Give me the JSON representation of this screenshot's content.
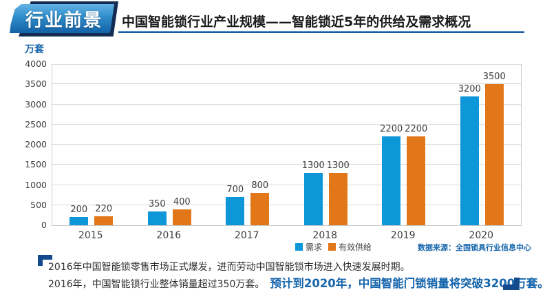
{
  "header": {
    "banner_label": "行业前景",
    "title": "中国智能锁行业产业规模——智能锁近5年的供给及需求概况"
  },
  "chart_data": {
    "type": "bar",
    "title": "",
    "categories": [
      "2015",
      "2016",
      "2017",
      "2018",
      "2019",
      "2020"
    ],
    "series": [
      {
        "name": "需求",
        "color": "#0d97d9",
        "values": [
          200,
          350,
          700,
          1300,
          2200,
          3200
        ]
      },
      {
        "name": "有效供给",
        "color": "#e2771a",
        "values": [
          220,
          400,
          800,
          1300,
          2200,
          3500
        ]
      }
    ],
    "xlabel": "",
    "ylabel": "万套",
    "ylim": [
      0,
      4000
    ],
    "ytick_step": 500,
    "grid": true,
    "legend_position": "bottom",
    "source": "数据来源：全国锁具行业信息中心"
  },
  "footer": {
    "line1": "2016年中国智能锁零售市场正式爆发，进而劳动中国智能锁市场进入快速发展时期。",
    "line2_normal": "2016年，中国智能锁行业整体销量超过350万套。",
    "line2_highlight": "预计到2020年，中国智能门锁销量将突破3200万套。"
  },
  "colors": {
    "accent_blue": "#1565ac",
    "navy": "#132c54",
    "bar_blue": "#0d97d9",
    "bar_orange": "#e2771a"
  }
}
